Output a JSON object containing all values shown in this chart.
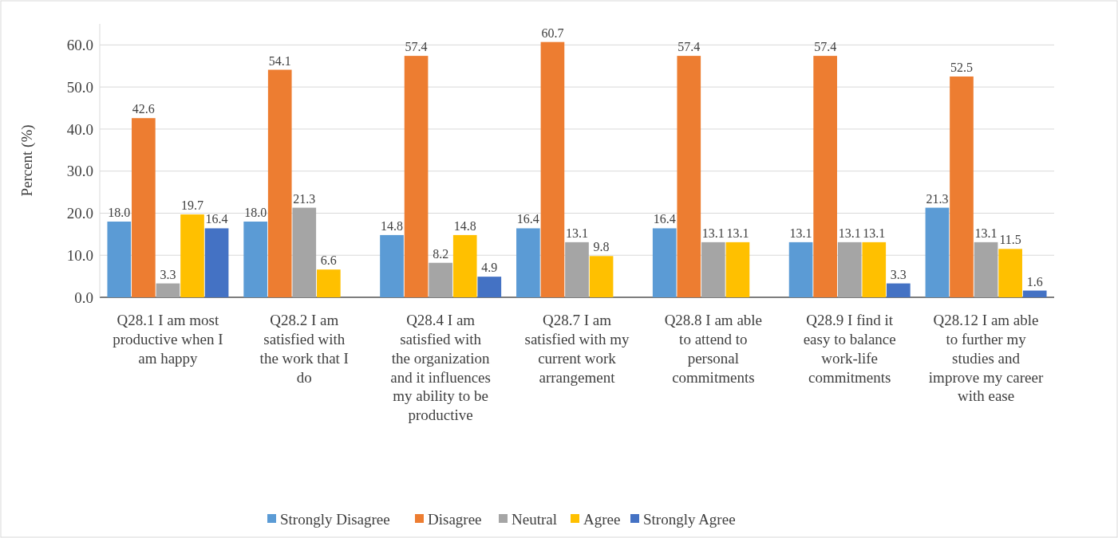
{
  "chart_data": {
    "type": "bar",
    "ylabel": "Percent (%)",
    "categories": [
      "Q28.1 I am most productive when I am happy",
      "Q28.2 I am satisfied with the work that I do",
      "Q28.4 I am satisfied with the organization and it influences my ability to be productive",
      "Q28.7 I am satisfied with my current work arrangement",
      "Q28.8 I am able to attend to personal commitments",
      "Q28.9 I find it easy to balance work-life commitments",
      "Q28.12 I am able to further my studies and improve my career with ease"
    ],
    "series": [
      {
        "name": "Strongly Disagree",
        "color": "#5b9bd5",
        "values": [
          18.0,
          18.0,
          14.8,
          16.4,
          16.4,
          13.1,
          21.3
        ],
        "value_labels": [
          "18.0",
          "18.0",
          "14.8",
          "16.4",
          "16.4",
          "13.1",
          "21.3"
        ]
      },
      {
        "name": "Disagree",
        "color": "#ed7d31",
        "values": [
          42.6,
          54.1,
          57.4,
          60.7,
          57.4,
          57.4,
          52.5
        ],
        "value_labels": [
          "42.6",
          "54.1",
          "57.4",
          "60.7",
          "57.4",
          "57.4",
          "52.5"
        ]
      },
      {
        "name": "Neutral",
        "color": "#a5a5a5",
        "values": [
          3.3,
          21.3,
          8.2,
          13.1,
          13.1,
          13.1,
          13.1
        ],
        "value_labels": [
          "3.3",
          "21.3",
          "8.2",
          "13.1",
          "13.1",
          "13.1",
          "13.1"
        ]
      },
      {
        "name": "Agree",
        "color": "#ffc000",
        "values": [
          19.7,
          6.6,
          14.8,
          9.8,
          13.1,
          13.1,
          11.5
        ],
        "value_labels": [
          "19.7",
          "6.6",
          "14.8",
          "9.8",
          "13.1",
          "13.1",
          "11.5"
        ]
      },
      {
        "name": "Strongly Agree",
        "color": "#4472c4",
        "values": [
          16.4,
          null,
          4.9,
          null,
          null,
          3.3,
          1.6
        ],
        "value_labels": [
          "16.4",
          null,
          "4.9",
          null,
          null,
          "3.3",
          "1.6"
        ]
      }
    ],
    "ylim": [
      0,
      65
    ],
    "yticks": [
      {
        "value": 0,
        "label": "0.0"
      },
      {
        "value": 10,
        "label": "10.0"
      },
      {
        "value": 20,
        "label": "20.0"
      },
      {
        "value": 30,
        "label": "30.0"
      },
      {
        "value": 40,
        "label": "40.0"
      },
      {
        "value": 50,
        "label": "50.0"
      },
      {
        "value": 60,
        "label": "60.0"
      }
    ],
    "grid": "y",
    "legend": "bottom"
  }
}
